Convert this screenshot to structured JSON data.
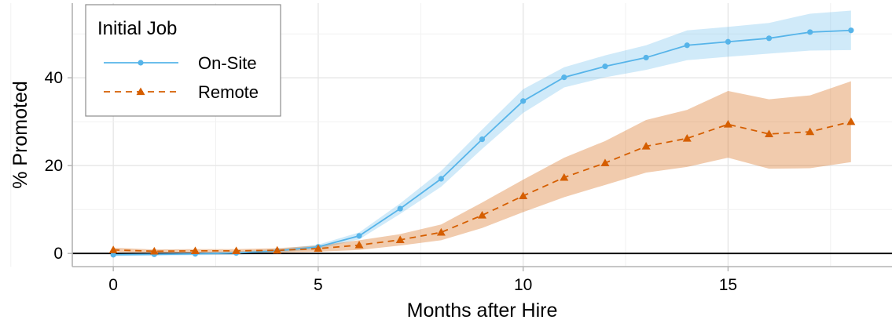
{
  "chart_data": {
    "type": "line",
    "title": "",
    "xlabel": "Months after Hire",
    "ylabel": "% Promoted",
    "xlim": [
      -1,
      19
    ],
    "ylim": [
      -3,
      57
    ],
    "x_ticks": [
      0,
      5,
      10,
      15
    ],
    "y_ticks": [
      0,
      20,
      40
    ],
    "x": [
      0,
      1,
      2,
      3,
      4,
      5,
      6,
      7,
      8,
      9,
      10,
      11,
      12,
      13,
      14,
      15,
      16,
      17,
      18
    ],
    "grid": true,
    "reference_line_y": 0,
    "legend": {
      "title": "Initial Job",
      "position": "top-left"
    },
    "series": [
      {
        "name": "On-Site",
        "color": "#56B4E9",
        "marker": "circle",
        "line_style": "solid",
        "values": [
          -0.3,
          -0.2,
          -0.1,
          0.1,
          0.6,
          1.5,
          4.0,
          10.2,
          17.0,
          26.0,
          34.7,
          40.1,
          42.6,
          44.6,
          47.4,
          48.2,
          49.0,
          50.4,
          50.8
        ],
        "ci_lower": [
          -0.6,
          -0.5,
          -0.4,
          -0.3,
          0.2,
          1.0,
          3.2,
          9.0,
          15.2,
          23.8,
          32.0,
          37.8,
          40.1,
          41.8,
          44.0,
          44.8,
          45.5,
          46.2,
          46.3
        ],
        "ci_upper": [
          0.0,
          0.1,
          0.2,
          0.5,
          1.0,
          2.0,
          4.8,
          11.4,
          18.8,
          28.2,
          37.4,
          42.4,
          45.1,
          47.4,
          50.8,
          51.6,
          52.5,
          54.6,
          55.3
        ]
      },
      {
        "name": "Remote",
        "color": "#D55E00",
        "marker": "triangle",
        "line_style": "dashed",
        "values": [
          0.8,
          0.5,
          0.6,
          0.6,
          0.7,
          1.1,
          1.9,
          3.1,
          4.8,
          8.7,
          13.1,
          17.3,
          20.6,
          24.4,
          26.2,
          29.4,
          27.2,
          27.7,
          30.0
        ],
        "ci_lower": [
          0.3,
          0.1,
          0.2,
          0.2,
          0.2,
          0.4,
          0.8,
          1.8,
          3.0,
          5.8,
          9.4,
          12.8,
          15.6,
          18.4,
          19.7,
          21.8,
          19.3,
          19.4,
          20.8
        ],
        "ci_upper": [
          1.3,
          0.9,
          1.0,
          1.0,
          1.2,
          1.8,
          3.0,
          4.4,
          6.6,
          11.6,
          16.8,
          21.8,
          25.6,
          30.4,
          32.7,
          37.0,
          35.1,
          36.0,
          39.2
        ]
      }
    ]
  }
}
